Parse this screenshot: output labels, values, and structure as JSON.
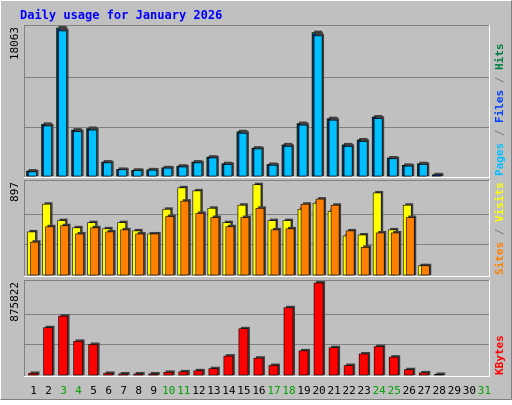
{
  "chart_data": {
    "type": "bar",
    "title": "Daily usage for January 2026",
    "categories": [
      "1",
      "2",
      "3",
      "4",
      "5",
      "6",
      "7",
      "8",
      "9",
      "10",
      "11",
      "12",
      "13",
      "14",
      "15",
      "16",
      "17",
      "18",
      "19",
      "20",
      "21",
      "22",
      "23",
      "24",
      "25",
      "26",
      "27",
      "28",
      "29",
      "30",
      "31"
    ],
    "weekend_days": [
      "3",
      "4",
      "10",
      "11",
      "17",
      "18",
      "24",
      "25",
      "31"
    ],
    "panels": [
      {
        "ylabel_max": "18063",
        "ylim": [
          0,
          18063
        ],
        "grid": true,
        "side_legend": [
          {
            "text": "Pages",
            "color": "#00c0ff"
          },
          {
            "text": " / ",
            "color": "#808080"
          },
          {
            "text": "Files",
            "color": "#0040ff"
          },
          {
            "text": " / ",
            "color": "#808080"
          },
          {
            "text": "Hits",
            "color": "#008040"
          }
        ],
        "series": [
          {
            "name": "Hits",
            "color": "#008040",
            "values": [
              600,
              6300,
              18063,
              5600,
              5800,
              1700,
              800,
              700,
              750,
              1000,
              1200,
              1700,
              2300,
              1500,
              5400,
              3400,
              1400,
              3800,
              6400,
              17500,
              7000,
              3800,
              4400,
              7200,
              2200,
              1300,
              1500,
              150,
              0,
              0,
              0
            ]
          },
          {
            "name": "Files",
            "color": "#0040ff",
            "values": [
              550,
              6200,
              17900,
              5500,
              5700,
              1650,
              780,
              680,
              730,
              980,
              1150,
              1650,
              2250,
              1450,
              5300,
              3350,
              1350,
              3700,
              6300,
              17300,
              6900,
              3700,
              4300,
              7100,
              2150,
              1250,
              1450,
              120,
              0,
              0,
              0
            ]
          },
          {
            "name": "Pages",
            "color": "#00c0ff",
            "values": [
              500,
              6100,
              17700,
              5400,
              5600,
              1600,
              750,
              650,
              700,
              950,
              1100,
              1600,
              2200,
              1400,
              5200,
              3300,
              1300,
              3600,
              6200,
              17100,
              6800,
              3600,
              4200,
              7000,
              2100,
              1200,
              1400,
              0,
              0,
              0,
              0
            ]
          }
        ]
      },
      {
        "ylabel_max": "897",
        "ylim": [
          0,
          897
        ],
        "grid": true,
        "side_legend": [
          {
            "text": "Sites",
            "color": "#ff8000"
          },
          {
            "text": " / ",
            "color": "#808080"
          },
          {
            "text": "Visits",
            "color": "#ffff00"
          }
        ],
        "series": [
          {
            "name": "Visits",
            "color": "#ffff00",
            "values": [
              420,
              690,
              530,
              460,
              510,
              450,
              510,
              430,
              400,
              640,
              850,
              820,
              650,
              510,
              680,
              880,
              530,
              530,
              640,
              700,
              620,
              380,
              390,
              800,
              440,
              680,
              90,
              0,
              0,
              0,
              0
            ]
          },
          {
            "name": "Sites",
            "color": "#ff8000",
            "values": [
              320,
              470,
              480,
              400,
              460,
              420,
              440,
              400,
              400,
              570,
              720,
              600,
              560,
              470,
              560,
              650,
              440,
              450,
              690,
              740,
              680,
              430,
              270,
              410,
              410,
              560,
              90,
              0,
              0,
              0,
              0
            ]
          }
        ]
      },
      {
        "ylabel_max": "875822",
        "ylim": [
          0,
          875822
        ],
        "grid": true,
        "side_legend": [
          {
            "text": "KBytes",
            "color": "#ff0000"
          }
        ],
        "series": [
          {
            "name": "KBytes",
            "color": "#ff0000",
            "values": [
              15000,
              450000,
              560000,
              320000,
              290000,
              15000,
              10000,
              10000,
              10000,
              25000,
              30000,
              40000,
              60000,
              180000,
              440000,
              160000,
              90000,
              640000,
              230000,
              875822,
              260000,
              90000,
              200000,
              270000,
              170000,
              50000,
              20000,
              5000,
              0,
              0,
              0
            ]
          }
        ]
      }
    ]
  }
}
